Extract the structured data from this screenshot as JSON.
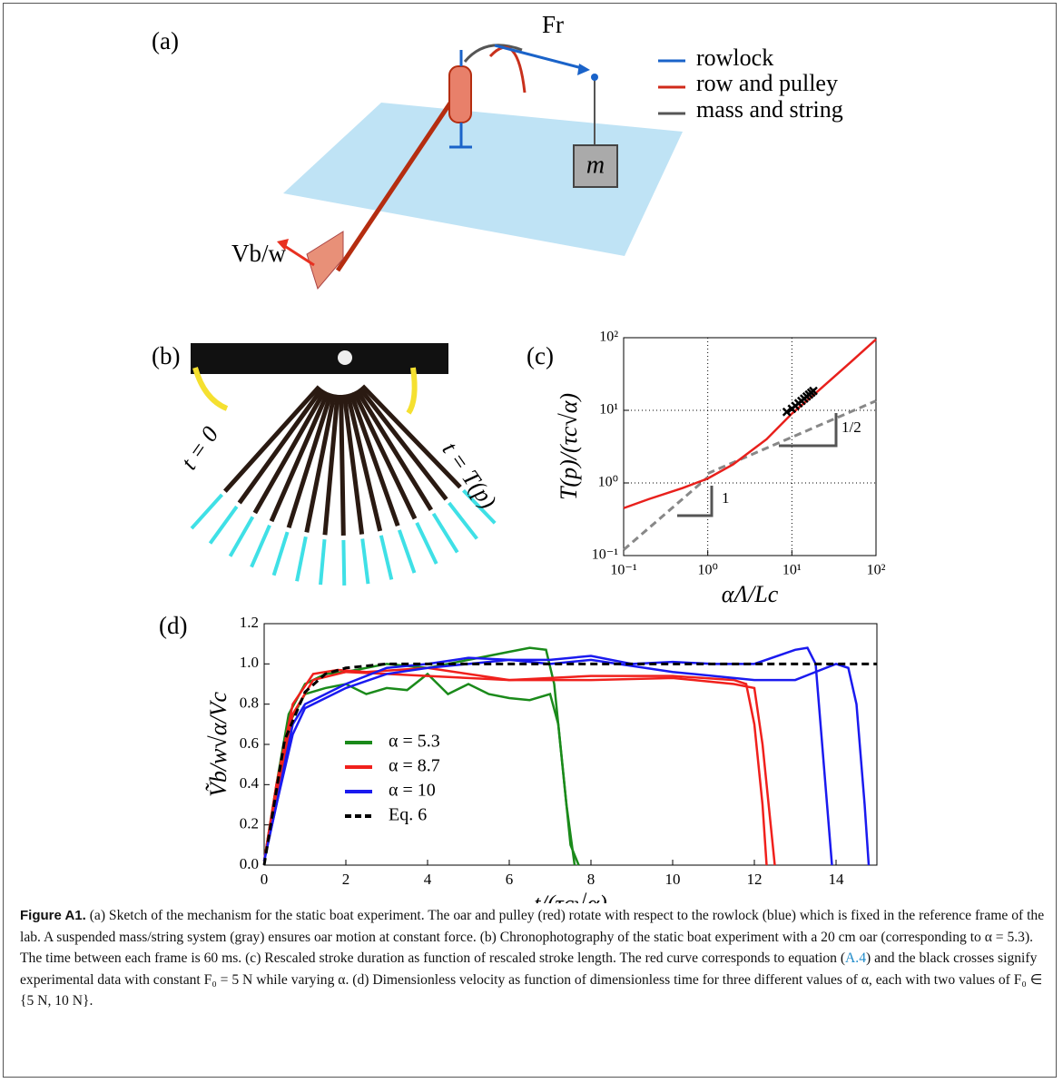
{
  "panels": {
    "a": {
      "label": "(a)",
      "legend": [
        "rowlock",
        "row and pulley",
        "mass and string"
      ],
      "force_label": "Fr",
      "mass_label": "m",
      "velocity_label": "Vb/w"
    },
    "b": {
      "label": "(b)",
      "start_label": "t = 0",
      "end_label": "t = T(p)"
    },
    "c": {
      "label": "(c)"
    },
    "d": {
      "label": "(d)"
    }
  },
  "chart_data": [
    {
      "type": "line",
      "xlog": true,
      "ylog": true,
      "grid": true,
      "xlabel": "αΛ/Lc",
      "ylabel": "T(p)/(τc√α)",
      "xlim": [
        0.1,
        100
      ],
      "ylim": [
        0.1,
        100
      ],
      "xticks": [
        {
          "value": 0.1,
          "label": "10⁻¹"
        },
        {
          "value": 1,
          "label": "10⁰"
        },
        {
          "value": 10,
          "label": "10¹"
        },
        {
          "value": 100,
          "label": "10²"
        }
      ],
      "yticks": [
        {
          "value": 0.1,
          "label": "10⁻¹"
        },
        {
          "value": 1,
          "label": "10⁰"
        },
        {
          "value": 10,
          "label": "10¹"
        },
        {
          "value": 100,
          "label": "10²"
        }
      ],
      "annotations": [
        "1",
        "1/2"
      ],
      "series": [
        {
          "color": "#888888",
          "style": "dashed",
          "x": [
            0.1,
            1
          ],
          "values": [
            0.12,
            1.2
          ]
        },
        {
          "color": "#888888",
          "style": "dashed",
          "x": [
            1,
            100
          ],
          "values": [
            1.35,
            13.5
          ]
        },
        {
          "color": "#e8201c",
          "style": "solid",
          "x": [
            0.1,
            0.2,
            0.5,
            1,
            2,
            5,
            10,
            20,
            50,
            100
          ],
          "values": [
            0.45,
            0.6,
            0.85,
            1.15,
            1.8,
            4,
            9,
            18,
            46,
            95
          ]
        },
        {
          "color": "#000000",
          "style": "cross",
          "x": [
            8.7,
            10,
            11,
            12,
            13,
            14,
            15,
            16,
            17,
            18
          ],
          "values": [
            9.5,
            10.5,
            11.5,
            12.5,
            13.5,
            14.5,
            15.5,
            16.5,
            17.5,
            18.5
          ]
        }
      ]
    },
    {
      "type": "line",
      "grid": false,
      "xlabel": "t/(τc√α)",
      "ylabel": "Ṽb/w√α/Vc",
      "xlim": [
        0,
        15
      ],
      "ylim": [
        0,
        1.2
      ],
      "xticks": [
        0,
        2,
        4,
        6,
        8,
        10,
        12,
        14
      ],
      "yticks": [
        {
          "value": 0,
          "label": "0.0"
        },
        0.2,
        0.4,
        0.6,
        0.8,
        {
          "value": 1,
          "label": "1.0"
        },
        1.2
      ],
      "series": [
        {
          "name": "α = 5.3",
          "color": "#1a8a1a",
          "style": "solid",
          "runs": [
            {
              "x": [
                0,
                0.3,
                0.6,
                1,
                1.5,
                2,
                2.5,
                3,
                3.5,
                4,
                4.5,
                5,
                5.5,
                6,
                6.5,
                7,
                7.2,
                7.4,
                7.6
              ],
              "values": [
                0.02,
                0.35,
                0.7,
                0.85,
                0.88,
                0.9,
                0.85,
                0.88,
                0.87,
                0.95,
                0.85,
                0.9,
                0.85,
                0.83,
                0.82,
                0.85,
                0.7,
                0.3,
                0
              ]
            },
            {
              "x": [
                0,
                0.3,
                0.6,
                1,
                1.5,
                2,
                3,
                4,
                5,
                6,
                6.5,
                6.9,
                7.1,
                7.3,
                7.5,
                7.7
              ],
              "values": [
                0.02,
                0.4,
                0.75,
                0.9,
                0.95,
                0.96,
                1,
                0.98,
                1.02,
                1.06,
                1.08,
                1.07,
                0.9,
                0.5,
                0.1,
                0
              ]
            }
          ]
        },
        {
          "name": "α = 8.7",
          "color": "#f0201c",
          "style": "solid",
          "runs": [
            {
              "x": [
                0,
                0.3,
                0.7,
                1.2,
                1.8,
                2.5,
                4,
                6,
                8,
                10,
                11.5,
                12,
                12.2,
                12.4,
                12.5
              ],
              "values": [
                0.02,
                0.4,
                0.8,
                0.95,
                0.97,
                0.96,
                0.98,
                0.92,
                0.92,
                0.93,
                0.9,
                0.88,
                0.6,
                0.2,
                0
              ]
            },
            {
              "x": [
                0,
                0.3,
                0.7,
                1.2,
                2,
                3,
                4,
                6,
                8,
                10,
                11.5,
                11.8,
                12,
                12.2,
                12.3
              ],
              "values": [
                0.02,
                0.35,
                0.75,
                0.92,
                0.96,
                0.95,
                0.94,
                0.92,
                0.94,
                0.94,
                0.92,
                0.9,
                0.7,
                0.3,
                0
              ]
            }
          ]
        },
        {
          "name": "α = 10",
          "color": "#1a1aef",
          "style": "solid",
          "runs": [
            {
              "x": [
                0,
                0.3,
                0.7,
                1,
                1.5,
                2,
                3,
                4,
                5,
                6,
                7,
                8,
                9,
                10,
                11,
                12,
                13,
                13.3,
                13.5,
                13.7,
                13.9
              ],
              "values": [
                0.02,
                0.3,
                0.7,
                0.8,
                0.85,
                0.9,
                0.98,
                1,
                1.03,
                1.02,
                1.02,
                1.04,
                1,
                1.01,
                1,
                1,
                1.07,
                1.08,
                1,
                0.5,
                0
              ]
            },
            {
              "x": [
                0,
                0.3,
                0.7,
                1,
                1.5,
                2,
                3,
                4,
                5,
                6,
                7,
                8,
                10,
                12,
                13,
                14,
                14.3,
                14.5,
                14.7,
                14.8
              ],
              "values": [
                0.02,
                0.3,
                0.65,
                0.78,
                0.83,
                0.88,
                0.95,
                0.98,
                1,
                1.02,
                1,
                1.02,
                0.96,
                0.92,
                0.92,
                1,
                0.98,
                0.8,
                0.3,
                0
              ]
            }
          ]
        },
        {
          "name": "Eq. 6",
          "color": "#000000",
          "style": "dashed",
          "runs": [
            {
              "x": [
                0,
                0.5,
                1,
                1.5,
                2,
                3,
                4,
                6,
                8,
                10,
                12,
                15
              ],
              "values": [
                0,
                0.62,
                0.86,
                0.95,
                0.98,
                1,
                1,
                1,
                1,
                1,
                1,
                1
              ]
            }
          ]
        }
      ]
    }
  ],
  "caption": {
    "label": "Figure A1.",
    "text": "(a) Sketch of the mechanism for the static boat experiment. The oar and pulley (red) rotate with respect to the rowlock (blue) which is fixed in the reference frame of the lab. A suspended mass/string system (gray) ensures oar motion at constant force. (b) Chronophotography of the static boat experiment with a 20 cm oar (corresponding to α = 5.3). The time between each frame is 60 ms. (c) Rescaled stroke duration as function of rescaled stroke length. The red curve corresponds to equation (",
    "ref": "A.4",
    "text_end": ") and the black crosses signify experimental data with constant F₀ = 5 N while varying α. (d) Dimensionless velocity as function of dimensionless time for three different values of α, each with two values of F₀ ∈ {5 N, 10 N}."
  }
}
